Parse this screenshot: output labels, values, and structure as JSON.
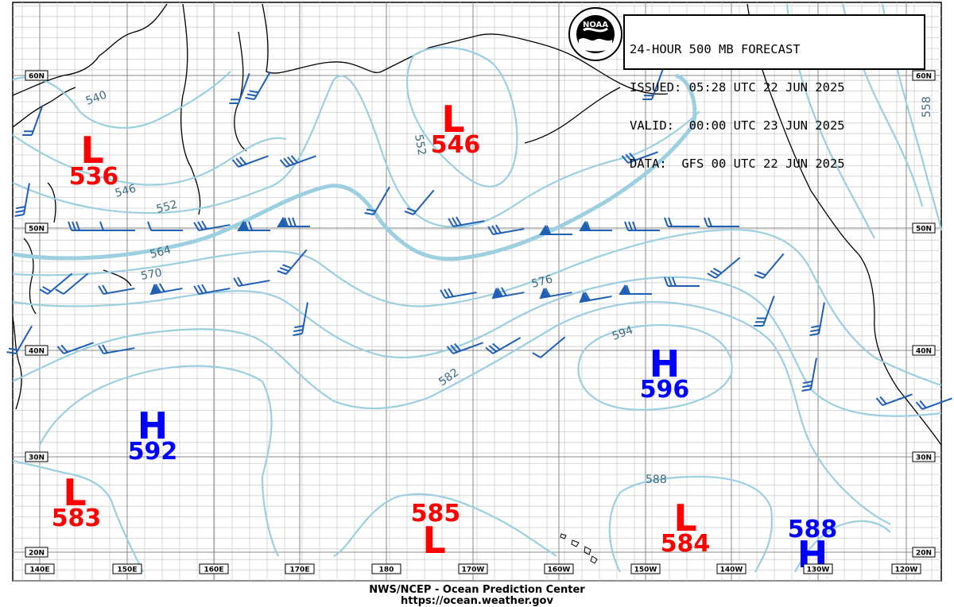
{
  "forecast": {
    "title_line": "24-HOUR 500 MB FORECAST",
    "issued_label": "ISSUED:",
    "issued_value": "05:28 UTC 22 JUN 2025",
    "valid_label": "VALID:",
    "valid_value": "00:00 UTC 23 JUN 2025",
    "data_label": "DATA:",
    "data_value": "GFS 00 UTC 22 JUN 2025"
  },
  "footer": {
    "center": "NWS/NCEP - Ocean Prediction Center",
    "url": "https://ocean.weather.gov"
  },
  "logo": {
    "text": "NOAA",
    "icon": "noaa-logo"
  },
  "lat_labels": [
    "60N",
    "50N",
    "40N",
    "30N",
    "20N"
  ],
  "lon_labels": [
    "140E",
    "150E",
    "160E",
    "170E",
    "180",
    "170W",
    "160W",
    "150W",
    "140W",
    "130W",
    "120W"
  ],
  "contour_labels": [
    "540",
    "546",
    "552",
    "564",
    "570",
    "576",
    "582",
    "594",
    "588",
    "552",
    "558"
  ],
  "pressure_centers": [
    {
      "type": "L",
      "value": "536",
      "color": "#ff0000"
    },
    {
      "type": "L",
      "value": "546",
      "color": "#ff0000"
    },
    {
      "type": "H",
      "value": "592",
      "color": "#0000ff"
    },
    {
      "type": "H",
      "value": "596",
      "color": "#0000ff"
    },
    {
      "type": "L",
      "value": "583",
      "color": "#ff0000"
    },
    {
      "type": "L",
      "value": "585",
      "color": "#ff0000"
    },
    {
      "type": "L",
      "value": "584",
      "color": "#ff0000"
    },
    {
      "type": "H",
      "value": "588",
      "color": "#0000ff"
    }
  ],
  "colors": {
    "contour": "#9ccfe0",
    "barb": "#1f5fb4",
    "coast": "#000000",
    "grid_major": "#888888",
    "grid_minor": "#cfcfcf",
    "low": "#ff0000",
    "high": "#0000ff"
  }
}
